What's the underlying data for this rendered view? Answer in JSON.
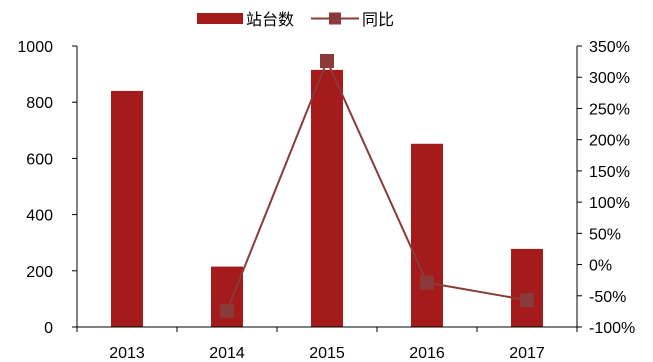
{
  "chart_data": {
    "type": "bar+line",
    "categories": [
      "2013",
      "2014",
      "2015",
      "2016",
      "2017"
    ],
    "series": [
      {
        "name": "站台数",
        "type": "bar",
        "axis": "left",
        "color": "#A51A1A",
        "values": [
          840,
          215,
          915,
          652,
          278
        ]
      },
      {
        "name": "同比",
        "type": "line",
        "axis": "right",
        "color": "#8B3A3A",
        "marker_color": "#8B3A3A",
        "values": [
          null,
          -74,
          326,
          -29,
          -57
        ]
      }
    ],
    "y_left": {
      "ylim": [
        0,
        1000
      ],
      "ticks": [
        0,
        200,
        400,
        600,
        800,
        1000
      ],
      "tick_labels": [
        "0",
        "200",
        "400",
        "600",
        "800",
        "1000"
      ]
    },
    "y_right": {
      "ylim": [
        -100,
        350
      ],
      "ticks": [
        -100,
        -50,
        0,
        50,
        100,
        150,
        200,
        250,
        300,
        350
      ],
      "tick_labels": [
        "-100%",
        "-50%",
        "0%",
        "50%",
        "100%",
        "150%",
        "200%",
        "250%",
        "300%",
        "350%"
      ]
    },
    "legend_position": "top-center",
    "grid": false
  }
}
